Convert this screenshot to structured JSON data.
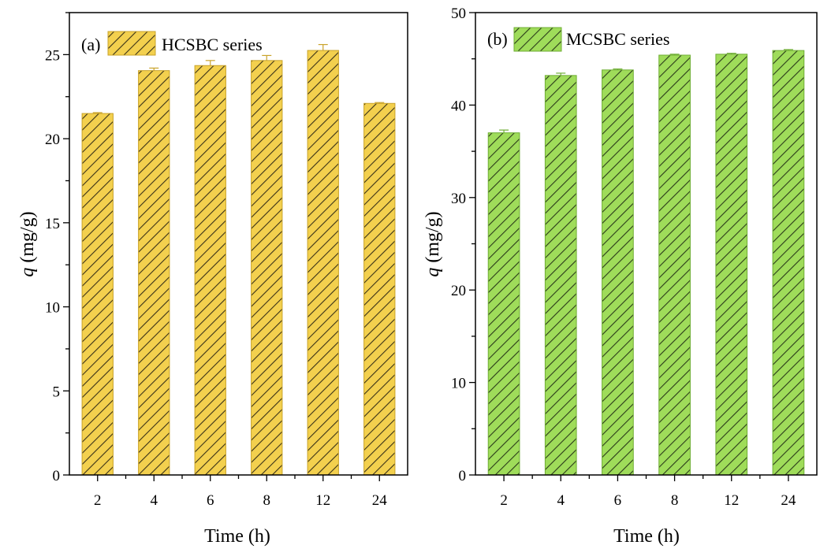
{
  "chart_data": [
    {
      "type": "bar",
      "panel_label": "(a)",
      "categories": [
        "2",
        "4",
        "6",
        "8",
        "12",
        "24"
      ],
      "series": [
        {
          "name": "HCSBC series",
          "values": [
            21.5,
            24.05,
            24.35,
            24.65,
            25.25,
            22.1
          ],
          "errors": [
            0.05,
            0.15,
            0.3,
            0.3,
            0.35,
            0.05
          ]
        }
      ],
      "xlabel": "Time (h)",
      "ylabel_italic": "q",
      "ylabel_unit": " (mg/g)",
      "ylim": [
        0,
        27.5
      ],
      "yticks": [
        0,
        5,
        10,
        15,
        20,
        25
      ],
      "minor_step": 2.5,
      "fill_color": "#f3d04e",
      "edge_color": "#c9a32a",
      "hatch_color": "#3a3218",
      "legend_position": "top-left"
    },
    {
      "type": "bar",
      "panel_label": "(b)",
      "categories": [
        "2",
        "4",
        "6",
        "8",
        "12",
        "24"
      ],
      "series": [
        {
          "name": "MCSBC series",
          "values": [
            37.0,
            43.2,
            43.8,
            45.4,
            45.5,
            45.9
          ],
          "errors": [
            0.3,
            0.25,
            0.1,
            0.1,
            0.1,
            0.1
          ]
        }
      ],
      "xlabel": "Time (h)",
      "ylabel_italic": "q",
      "ylabel_unit": " (mg/g)",
      "ylim": [
        0,
        50
      ],
      "yticks": [
        0,
        10,
        20,
        30,
        40,
        50
      ],
      "minor_step": 5,
      "fill_color": "#9fdc5a",
      "edge_color": "#6fae34",
      "hatch_color": "#2a3a1a",
      "legend_position": "top-left"
    }
  ]
}
